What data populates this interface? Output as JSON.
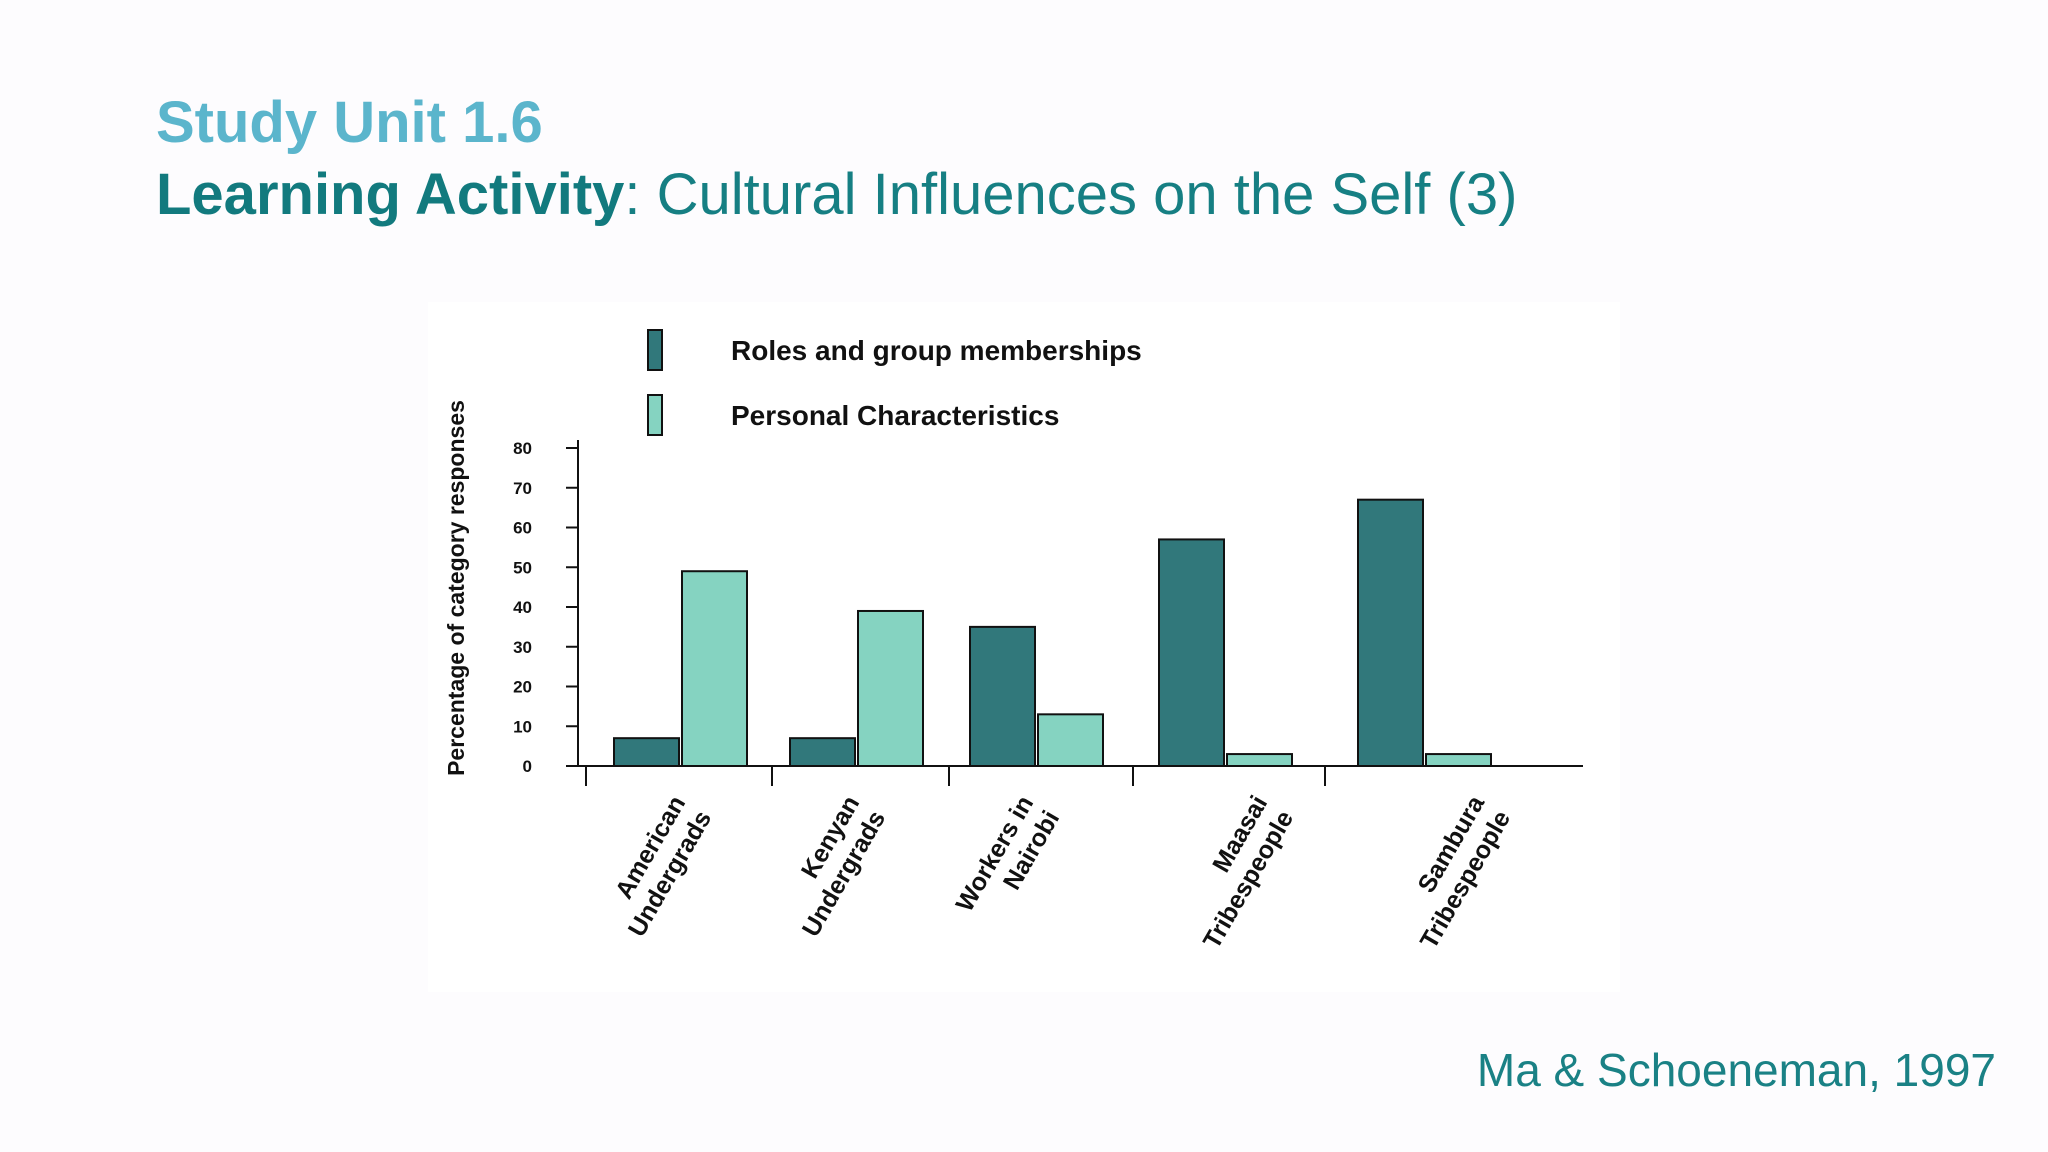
{
  "slide": {
    "unit": "Study Unit 1.6",
    "activity_label": "Learning Activity",
    "activity_separator": ": ",
    "activity_title": "Cultural Influences on the Self (3)",
    "citation": "Ma & Schoeneman, 1997"
  },
  "chart_data": {
    "type": "bar",
    "title": "",
    "xlabel": "",
    "ylabel": "Percentage of category responses",
    "ylim": [
      0,
      80
    ],
    "yticks": [
      0,
      10,
      20,
      30,
      40,
      50,
      60,
      70,
      80
    ],
    "grid": false,
    "legend_position": "top",
    "categories": [
      [
        "American",
        "Undergrads"
      ],
      [
        "Kenyan",
        "Undergrads"
      ],
      [
        "Workers in",
        "Nairobi"
      ],
      [
        "Maasai",
        "Tribespeople"
      ],
      [
        "Sambura",
        "Tribespeople"
      ]
    ],
    "series": [
      {
        "name": "Roles and group memberships",
        "color": "#31787b",
        "values": [
          7,
          7,
          35,
          57,
          67
        ]
      },
      {
        "name": "Personal Characteristics",
        "color": "#85d3c1",
        "values": [
          49,
          39,
          13,
          3,
          3
        ]
      }
    ]
  }
}
